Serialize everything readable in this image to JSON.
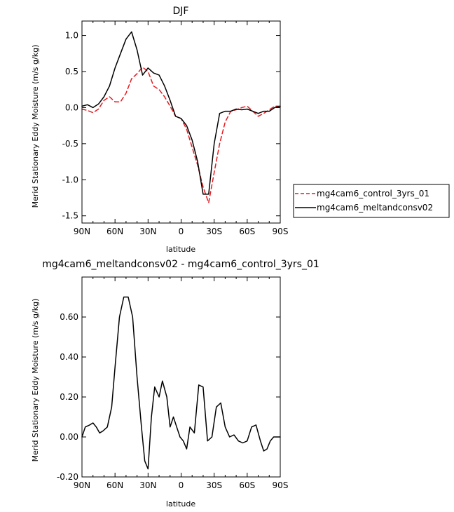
{
  "chart_data": [
    {
      "type": "line",
      "title": "DJF",
      "xlabel": "latitude",
      "ylabel": "Merid Stationary Eddy Moisture (m/s g/kg)",
      "xlim": [
        90,
        -90
      ],
      "ylim": [
        -1.6,
        1.2
      ],
      "x_ticks": [
        90,
        60,
        30,
        0,
        -30,
        -60,
        -90
      ],
      "x_tick_labels": [
        "90N",
        "60N",
        "30N",
        "0",
        "30S",
        "60S",
        "90S"
      ],
      "y_ticks": [
        1.0,
        0.5,
        0.0,
        -0.5,
        -1.0,
        -1.5
      ],
      "y_tick_labels": [
        "1.0",
        "0.5",
        "0.0",
        "-0.5",
        "-1.0",
        "-1.5"
      ],
      "legend_position": "right",
      "series": [
        {
          "name": "mg4cam6_control_3yrs_01",
          "color": "#e8191f",
          "dash": "dashed",
          "x": [
            90,
            85,
            80,
            75,
            70,
            65,
            60,
            55,
            50,
            45,
            40,
            35,
            30,
            25,
            20,
            15,
            10,
            5,
            0,
            -5,
            -10,
            -15,
            -20,
            -25,
            -30,
            -35,
            -40,
            -45,
            -50,
            -55,
            -60,
            -65,
            -70,
            -75,
            -80,
            -85,
            -90
          ],
          "y": [
            -0.02,
            -0.04,
            -0.07,
            -0.02,
            0.1,
            0.15,
            0.08,
            0.08,
            0.2,
            0.4,
            0.47,
            0.56,
            0.5,
            0.3,
            0.25,
            0.15,
            0.02,
            -0.12,
            -0.15,
            -0.3,
            -0.55,
            -0.8,
            -1.1,
            -1.32,
            -0.9,
            -0.5,
            -0.2,
            -0.05,
            -0.03,
            0.0,
            0.02,
            -0.05,
            -0.12,
            -0.08,
            -0.03,
            0.02,
            0.02
          ]
        },
        {
          "name": "mg4cam6_meltandconsv02",
          "color": "#000000",
          "dash": "solid",
          "x": [
            90,
            85,
            80,
            75,
            70,
            65,
            60,
            55,
            50,
            45,
            40,
            35,
            30,
            25,
            20,
            15,
            10,
            5,
            0,
            -5,
            -10,
            -15,
            -20,
            -25,
            -30,
            -35,
            -40,
            -45,
            -50,
            -55,
            -60,
            -65,
            -70,
            -75,
            -80,
            -85,
            -90
          ],
          "y": [
            0.02,
            0.04,
            0.0,
            0.05,
            0.15,
            0.3,
            0.55,
            0.75,
            0.95,
            1.05,
            0.8,
            0.45,
            0.55,
            0.48,
            0.45,
            0.3,
            0.1,
            -0.12,
            -0.15,
            -0.25,
            -0.45,
            -0.75,
            -1.2,
            -1.2,
            -0.5,
            -0.08,
            -0.05,
            -0.05,
            -0.02,
            -0.03,
            -0.02,
            -0.05,
            -0.08,
            -0.05,
            -0.05,
            0.0,
            0.02
          ]
        }
      ]
    },
    {
      "type": "line",
      "title": "mg4cam6_meltandconsv02 - mg4cam6_control_3yrs_01",
      "xlabel": "latitude",
      "ylabel": "Merid Stationary Eddy Moisture (m/s g/kg)",
      "xlim": [
        90,
        -90
      ],
      "ylim": [
        -0.2,
        0.8
      ],
      "x_ticks": [
        90,
        60,
        30,
        0,
        -30,
        -60,
        -90
      ],
      "x_tick_labels": [
        "90N",
        "60N",
        "30N",
        "0",
        "30S",
        "60S",
        "90S"
      ],
      "y_ticks": [
        0.6,
        0.4,
        0.2,
        0.0,
        -0.2
      ],
      "y_tick_labels": [
        "0.60",
        "0.40",
        "0.20",
        "0.00",
        "-0.20"
      ],
      "series": [
        {
          "color": "#000000",
          "dash": "solid",
          "x": [
            90,
            87,
            83,
            80,
            77,
            74,
            71,
            67,
            63,
            60,
            56,
            52,
            48,
            44,
            40,
            36,
            33,
            30,
            27,
            24,
            20,
            17,
            13,
            10,
            7,
            4,
            1,
            -2,
            -5,
            -8,
            -12,
            -16,
            -20,
            -24,
            -28,
            -32,
            -36,
            -40,
            -44,
            -48,
            -52,
            -56,
            -60,
            -64,
            -68,
            -72,
            -75,
            -78,
            -81,
            -84,
            -87,
            -90
          ],
          "y": [
            0.0,
            0.05,
            0.06,
            0.07,
            0.05,
            0.02,
            0.03,
            0.05,
            0.15,
            0.35,
            0.6,
            0.7,
            0.7,
            0.6,
            0.3,
            0.05,
            -0.12,
            -0.16,
            0.1,
            0.25,
            0.2,
            0.28,
            0.2,
            0.05,
            0.1,
            0.05,
            0.0,
            -0.02,
            -0.06,
            0.05,
            0.02,
            0.26,
            0.25,
            -0.02,
            0.0,
            0.15,
            0.17,
            0.05,
            0.0,
            0.01,
            -0.02,
            -0.03,
            -0.02,
            0.05,
            0.06,
            -0.02,
            -0.07,
            -0.06,
            -0.02,
            0.0,
            0.0,
            0.0
          ]
        }
      ]
    }
  ]
}
